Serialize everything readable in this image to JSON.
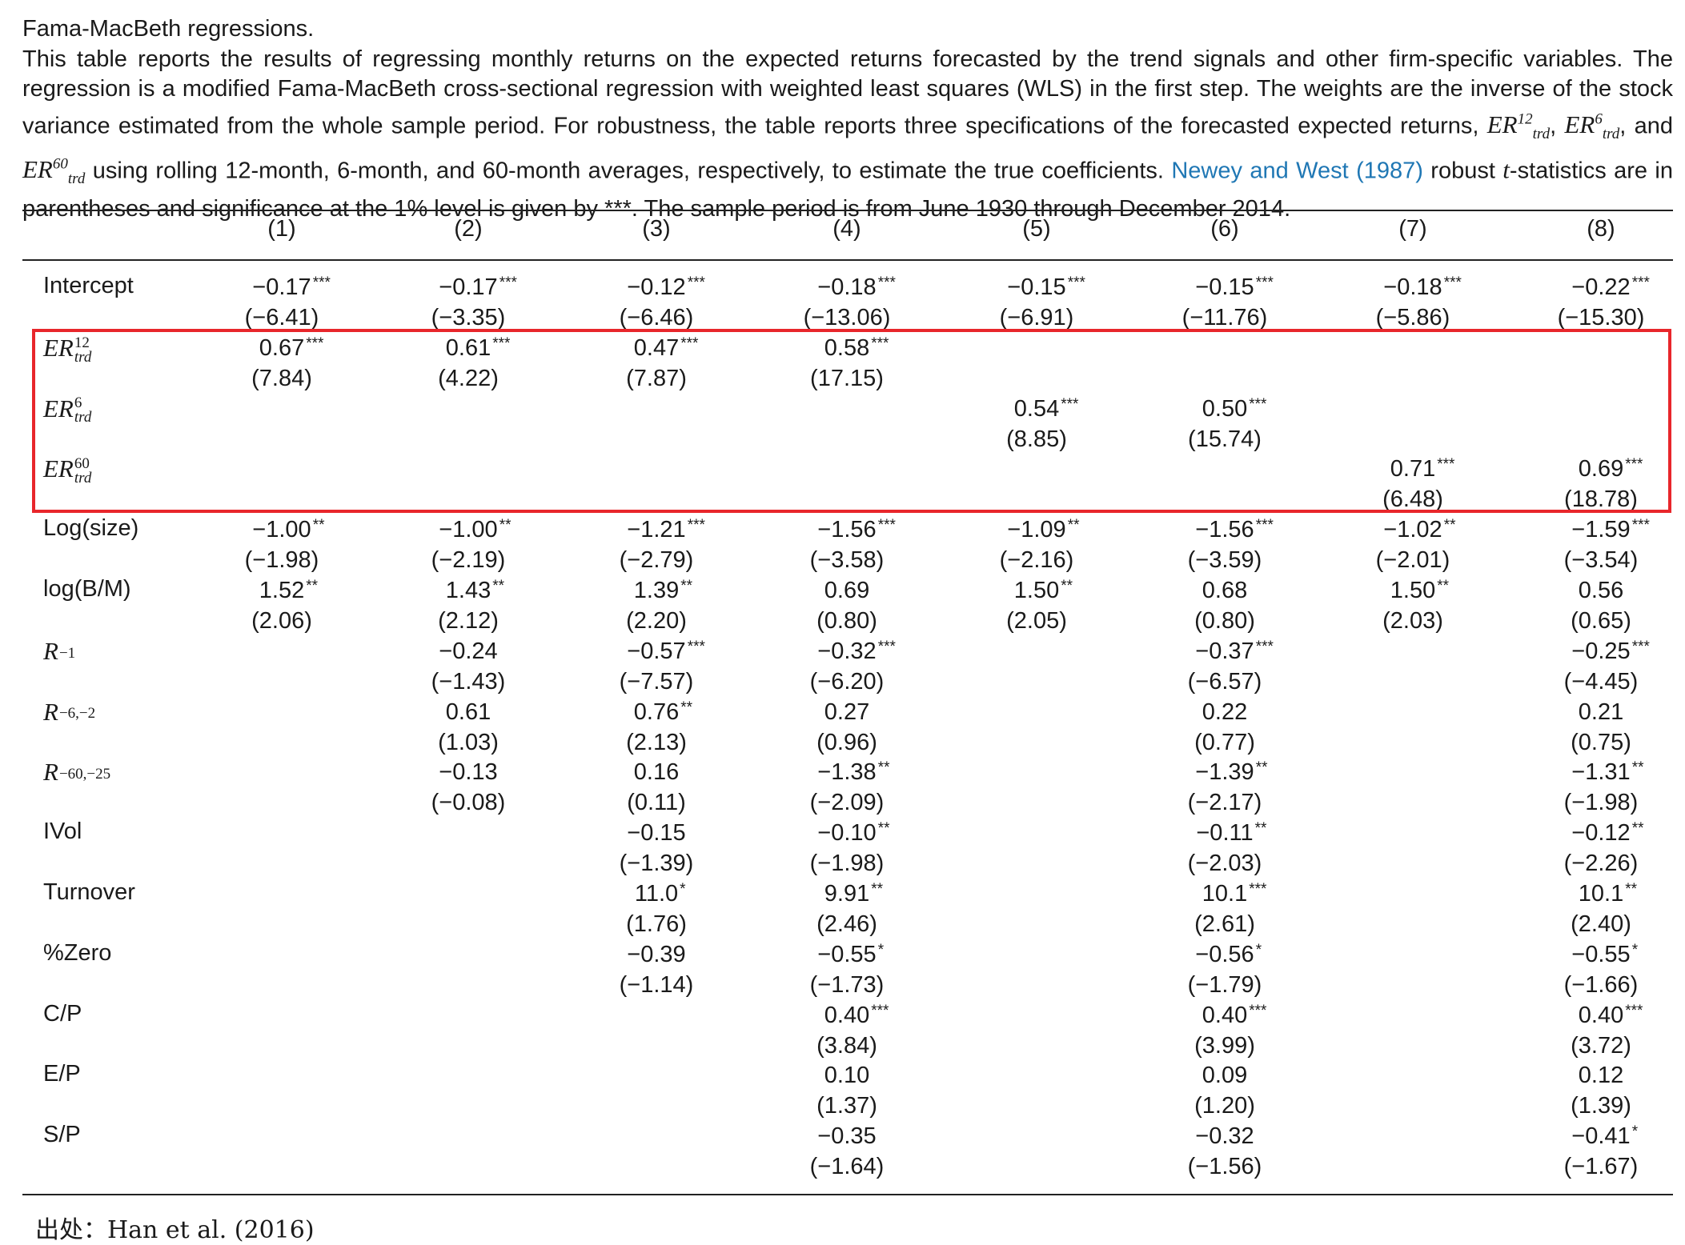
{
  "caption": {
    "title": "Fama-MacBeth regressions.",
    "body_parts": {
      "p1": "This table reports the results of regressing monthly returns on the expected returns forecasted by the trend signals and other firm-specific variables. The regression is a modified Fama-MacBeth cross-sectional regression with weighted least squares (WLS) in the first step. The weights are the inverse of the stock variance estimated from the whole sample period. For robustness, the table reports three specifications of the forecasted expected returns, ",
      "sym_er": "ER",
      "sup12": "12",
      "sup6": "6",
      "sup60": "60",
      "sub_trd": "trd",
      "comma1": ", ",
      "and": ", and ",
      "p2": " using rolling 12-month, 6-month, and 60-month averages, respectively, to estimate the true coefficients. ",
      "citation": "Newey and West (1987)",
      "p3": " robust ",
      "t": "t",
      "p4": "-statistics are in parentheses and significance at the 1% level is given by ***. The sample period is from June 1930 through December 2014."
    }
  },
  "table": {
    "columns": [
      "(1)",
      "(2)",
      "(3)",
      "(4)",
      "(5)",
      "(6)",
      "(7)",
      "(8)"
    ],
    "rows": [
      {
        "label": "Intercept",
        "coef": [
          "−0.17|***",
          "−0.17|***",
          "−0.12|***",
          "−0.18|***",
          "−0.15|***",
          "−0.15|***",
          "−0.18|***",
          "−0.22|***"
        ],
        "tstat": [
          "(−6.41)",
          "(−3.35)",
          "(−6.46)",
          "(−13.06)",
          "(−6.91)",
          "(−11.76)",
          "(−5.86)",
          "(−15.30)"
        ]
      },
      {
        "label": "ER",
        "sup": "12",
        "sub": "trd",
        "coef": [
          "0.67|***",
          "0.61|***",
          "0.47|***",
          "0.58|***",
          "",
          "",
          "",
          ""
        ],
        "tstat": [
          "(7.84)",
          "(4.22)",
          "(7.87)",
          "(17.15)",
          "",
          "",
          "",
          ""
        ]
      },
      {
        "label": "ER",
        "sup": "6",
        "sub": "trd",
        "coef": [
          "",
          "",
          "",
          "",
          "0.54|***",
          "0.50|***",
          "",
          ""
        ],
        "tstat": [
          "",
          "",
          "",
          "",
          "(8.85)",
          "(15.74)",
          "",
          ""
        ]
      },
      {
        "label": "ER",
        "sup": "60",
        "sub": "trd",
        "coef": [
          "",
          "",
          "",
          "",
          "",
          "",
          "0.71|***",
          "0.69|***"
        ],
        "tstat": [
          "",
          "",
          "",
          "",
          "",
          "",
          "(6.48)",
          "(18.78)"
        ]
      },
      {
        "label": "Log(size)",
        "coef": [
          "−1.00|**",
          "−1.00|**",
          "−1.21|***",
          "−1.56|***",
          "−1.09|**",
          "−1.56|***",
          "−1.02|**",
          "−1.59|***"
        ],
        "tstat": [
          "(−1.98)",
          "(−2.19)",
          "(−2.79)",
          "(−3.58)",
          "(−2.16)",
          "(−3.59)",
          "(−2.01)",
          "(−3.54)"
        ]
      },
      {
        "label": "log(B/M)",
        "coef": [
          "1.52|**",
          "1.43|**",
          "1.39|**",
          "0.69|",
          "1.50|**",
          "0.68|",
          "1.50|**",
          "0.56|"
        ],
        "tstat": [
          "(2.06)",
          "(2.12)",
          "(2.20)",
          "(0.80)",
          "(2.05)",
          "(0.80)",
          "(2.03)",
          "(0.65)"
        ]
      },
      {
        "label": "R",
        "sub": "−1",
        "coef": [
          "",
          "−0.24|",
          "−0.57|***",
          "−0.32|***",
          "",
          "−0.37|***",
          "",
          "−0.25|***"
        ],
        "tstat": [
          "",
          "(−1.43)",
          "(−7.57)",
          "(−6.20)",
          "",
          "(−6.57)",
          "",
          "(−4.45)"
        ]
      },
      {
        "label": "R",
        "sub": "−6,−2",
        "coef": [
          "",
          "0.61|",
          "0.76|**",
          "0.27|",
          "",
          "0.22|",
          "",
          "0.21|"
        ],
        "tstat": [
          "",
          "(1.03)",
          "(2.13)",
          "(0.96)",
          "",
          "(0.77)",
          "",
          "(0.75)"
        ]
      },
      {
        "label": "R",
        "sub": "−60,−25",
        "coef": [
          "",
          "−0.13|",
          "0.16|",
          "−1.38|**",
          "",
          "−1.39|**",
          "",
          "−1.31|**"
        ],
        "tstat": [
          "",
          "(−0.08)",
          "(0.11)",
          "(−2.09)",
          "",
          "(−2.17)",
          "",
          "(−1.98)"
        ]
      },
      {
        "label": "IVol",
        "coef": [
          "",
          "",
          "−0.15|",
          "−0.10|**",
          "",
          "−0.11|**",
          "",
          "−0.12|**"
        ],
        "tstat": [
          "",
          "",
          "(−1.39)",
          "(−1.98)",
          "",
          "(−2.03)",
          "",
          "(−2.26)"
        ]
      },
      {
        "label": "Turnover",
        "coef": [
          "",
          "",
          "11.0|*",
          "9.91|**",
          "",
          "10.1|***",
          "",
          "10.1|**"
        ],
        "tstat": [
          "",
          "",
          "(1.76)",
          "(2.46)",
          "",
          "(2.61)",
          "",
          "(2.40)"
        ]
      },
      {
        "label": "%Zero",
        "coef": [
          "",
          "",
          "−0.39|",
          "−0.55|*",
          "",
          "−0.56|*",
          "",
          "−0.55|*"
        ],
        "tstat": [
          "",
          "",
          "(−1.14)",
          "(−1.73)",
          "",
          "(−1.79)",
          "",
          "(−1.66)"
        ]
      },
      {
        "label": "C/P",
        "coef": [
          "",
          "",
          "",
          "0.40|***",
          "",
          "0.40|***",
          "",
          "0.40|***"
        ],
        "tstat": [
          "",
          "",
          "",
          "(3.84)",
          "",
          "(3.99)",
          "",
          "(3.72)"
        ]
      },
      {
        "label": "E/P",
        "coef": [
          "",
          "",
          "",
          "0.10|",
          "",
          "0.09|",
          "",
          "0.12|"
        ],
        "tstat": [
          "",
          "",
          "",
          "(1.37)",
          "",
          "(1.20)",
          "",
          "(1.39)"
        ]
      },
      {
        "label": "S/P",
        "coef": [
          "",
          "",
          "",
          "−0.35|",
          "",
          "−0.32|",
          "",
          "−0.41|*"
        ],
        "tstat": [
          "",
          "",
          "",
          "(−1.64)",
          "",
          "(−1.56)",
          "",
          "(−1.67)"
        ]
      }
    ]
  },
  "source": "出处：Han et al. (2016)",
  "colors": {
    "highlight": "#e8262b",
    "link": "#1f77b4"
  }
}
